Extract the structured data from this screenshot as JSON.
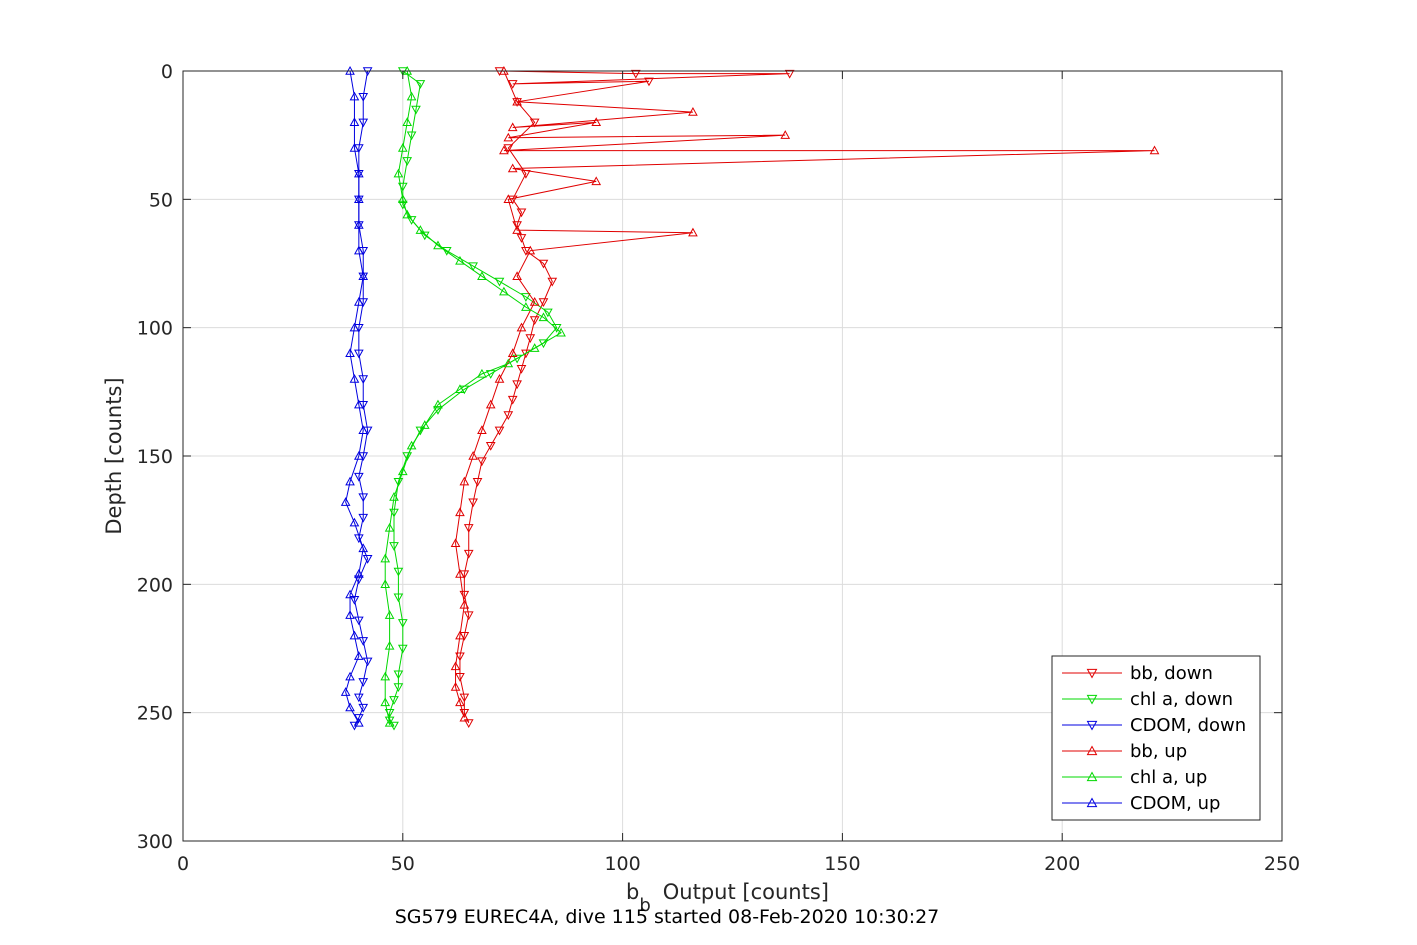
{
  "chart_data": {
    "type": "line",
    "xlabel": "Output [counts]",
    "xlabel_symbol": "b",
    "xlabel_subscript": "b",
    "ylabel": "Depth [counts]",
    "caption": "SG579 EUREC4A, dive 115 started 08-Feb-2020 10:30:27",
    "xlim": [
      0,
      250
    ],
    "ylim": [
      0,
      300
    ],
    "y_reversed": true,
    "xticks": [
      0,
      50,
      100,
      150,
      200,
      250
    ],
    "yticks": [
      0,
      50,
      100,
      150,
      200,
      250,
      300
    ],
    "grid": true,
    "legend_position": "bottom-right",
    "series": [
      {
        "name": "bb, down",
        "color": "#e00000",
        "marker": "triangle-down",
        "x": [
          72,
          103,
          138,
          75,
          106,
          76,
          80,
          74,
          78,
          75,
          77,
          76,
          77,
          78,
          82,
          84,
          82,
          80,
          79,
          78,
          77,
          76,
          75,
          74,
          72,
          70,
          68,
          67,
          66,
          65,
          65,
          64,
          64,
          65,
          64,
          63,
          63,
          64,
          64,
          65
        ],
        "y": [
          0,
          1,
          1,
          5,
          4,
          12,
          20,
          30,
          40,
          50,
          55,
          60,
          65,
          70,
          75,
          82,
          90,
          97,
          104,
          110,
          116,
          122,
          128,
          134,
          140,
          146,
          152,
          160,
          168,
          178,
          188,
          196,
          204,
          212,
          220,
          228,
          236,
          244,
          250,
          254
        ]
      },
      {
        "name": "chl a, down",
        "color": "#00d800",
        "marker": "triangle-down",
        "x": [
          50,
          54,
          53,
          52,
          51,
          50,
          50,
          52,
          55,
          60,
          66,
          72,
          78,
          83,
          85,
          82,
          76,
          70,
          64,
          58,
          54,
          51,
          49,
          48,
          48,
          49,
          49,
          50,
          50,
          49,
          49,
          48,
          47,
          47,
          48
        ],
        "y": [
          0,
          5,
          15,
          25,
          35,
          45,
          52,
          58,
          64,
          70,
          76,
          82,
          88,
          94,
          100,
          106,
          112,
          118,
          124,
          132,
          140,
          150,
          160,
          172,
          185,
          195,
          205,
          215,
          225,
          235,
          240,
          245,
          250,
          253,
          255
        ]
      },
      {
        "name": "CDOM, down",
        "color": "#0000e0",
        "marker": "triangle-down",
        "x": [
          42,
          41,
          41,
          40,
          40,
          40,
          40,
          41,
          41,
          41,
          40,
          40,
          41,
          41,
          42,
          41,
          40,
          41,
          41,
          40,
          42,
          40,
          39,
          40,
          41,
          42,
          41,
          40,
          41,
          40,
          39
        ],
        "y": [
          0,
          10,
          20,
          30,
          40,
          50,
          60,
          70,
          80,
          90,
          100,
          110,
          120,
          130,
          140,
          150,
          158,
          166,
          174,
          182,
          190,
          198,
          206,
          214,
          222,
          230,
          238,
          244,
          248,
          252,
          255
        ]
      },
      {
        "name": "bb, up",
        "color": "#e00000",
        "marker": "triangle-up",
        "x": [
          73,
          76,
          116,
          75,
          94,
          74,
          137,
          73,
          221,
          75,
          94,
          74,
          76,
          116,
          79,
          76,
          80,
          77,
          75,
          72,
          70,
          68,
          66,
          64,
          63,
          62,
          63,
          64,
          63,
          62,
          62,
          63,
          64
        ],
        "y": [
          0,
          12,
          16,
          22,
          20,
          26,
          25,
          31,
          31,
          38,
          43,
          50,
          62,
          63,
          70,
          80,
          90,
          100,
          110,
          120,
          130,
          140,
          150,
          160,
          172,
          184,
          196,
          208,
          220,
          232,
          240,
          246,
          252
        ]
      },
      {
        "name": "chl a, up",
        "color": "#00d800",
        "marker": "triangle-up",
        "x": [
          51,
          52,
          51,
          50,
          49,
          50,
          51,
          54,
          58,
          63,
          68,
          73,
          78,
          82,
          86,
          80,
          74,
          68,
          63,
          58,
          55,
          52,
          50,
          48,
          47,
          46,
          46,
          47,
          47,
          46,
          46,
          47
        ],
        "y": [
          0,
          10,
          20,
          30,
          40,
          50,
          56,
          62,
          68,
          74,
          80,
          86,
          92,
          96,
          102,
          108,
          114,
          118,
          124,
          130,
          138,
          146,
          156,
          166,
          178,
          190,
          200,
          212,
          224,
          236,
          246,
          254
        ]
      },
      {
        "name": "CDOM, up",
        "color": "#0000e0",
        "marker": "triangle-up",
        "x": [
          38,
          39,
          39,
          39,
          40,
          40,
          40,
          40,
          41,
          40,
          39,
          38,
          39,
          40,
          41,
          40,
          38,
          37,
          39,
          41,
          40,
          38,
          38,
          39,
          40,
          38,
          37,
          38,
          40
        ],
        "y": [
          0,
          10,
          20,
          30,
          40,
          50,
          60,
          70,
          80,
          90,
          100,
          110,
          120,
          130,
          140,
          150,
          160,
          168,
          176,
          186,
          196,
          204,
          212,
          220,
          228,
          236,
          242,
          248,
          254
        ]
      }
    ]
  }
}
